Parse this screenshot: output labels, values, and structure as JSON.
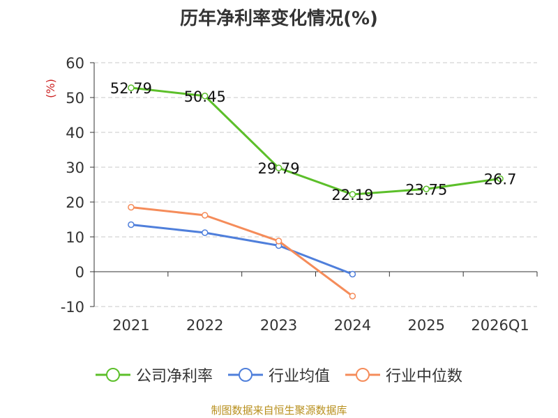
{
  "chart_data": {
    "type": "line",
    "title": "历年净利率变化情况(%)",
    "ylabel": "(%)",
    "categories": [
      "2021",
      "2022",
      "2023",
      "2024",
      "2025",
      "2026Q1"
    ],
    "ylim": [
      -10,
      60
    ],
    "yticks": [
      "-10",
      "0",
      "10",
      "20",
      "30",
      "40",
      "50",
      "60"
    ],
    "grid": true,
    "legend_position": "bottom",
    "series": [
      {
        "name": "公司净利率",
        "color": "#5cbf2a",
        "values": [
          52.79,
          50.45,
          29.79,
          22.19,
          23.75,
          26.7
        ],
        "labels": [
          "52.79",
          "50.45",
          "29.79",
          "22.19",
          "23.75",
          "26.7"
        ]
      },
      {
        "name": "行业均值",
        "color": "#4f7fdb",
        "values": [
          13.5,
          11.2,
          7.5,
          -0.7,
          null,
          null
        ]
      },
      {
        "name": "行业中位数",
        "color": "#f58c5a",
        "values": [
          18.5,
          16.2,
          8.8,
          -7.0,
          null,
          null
        ]
      }
    ]
  },
  "source": "制图数据来自恒生聚源数据库"
}
